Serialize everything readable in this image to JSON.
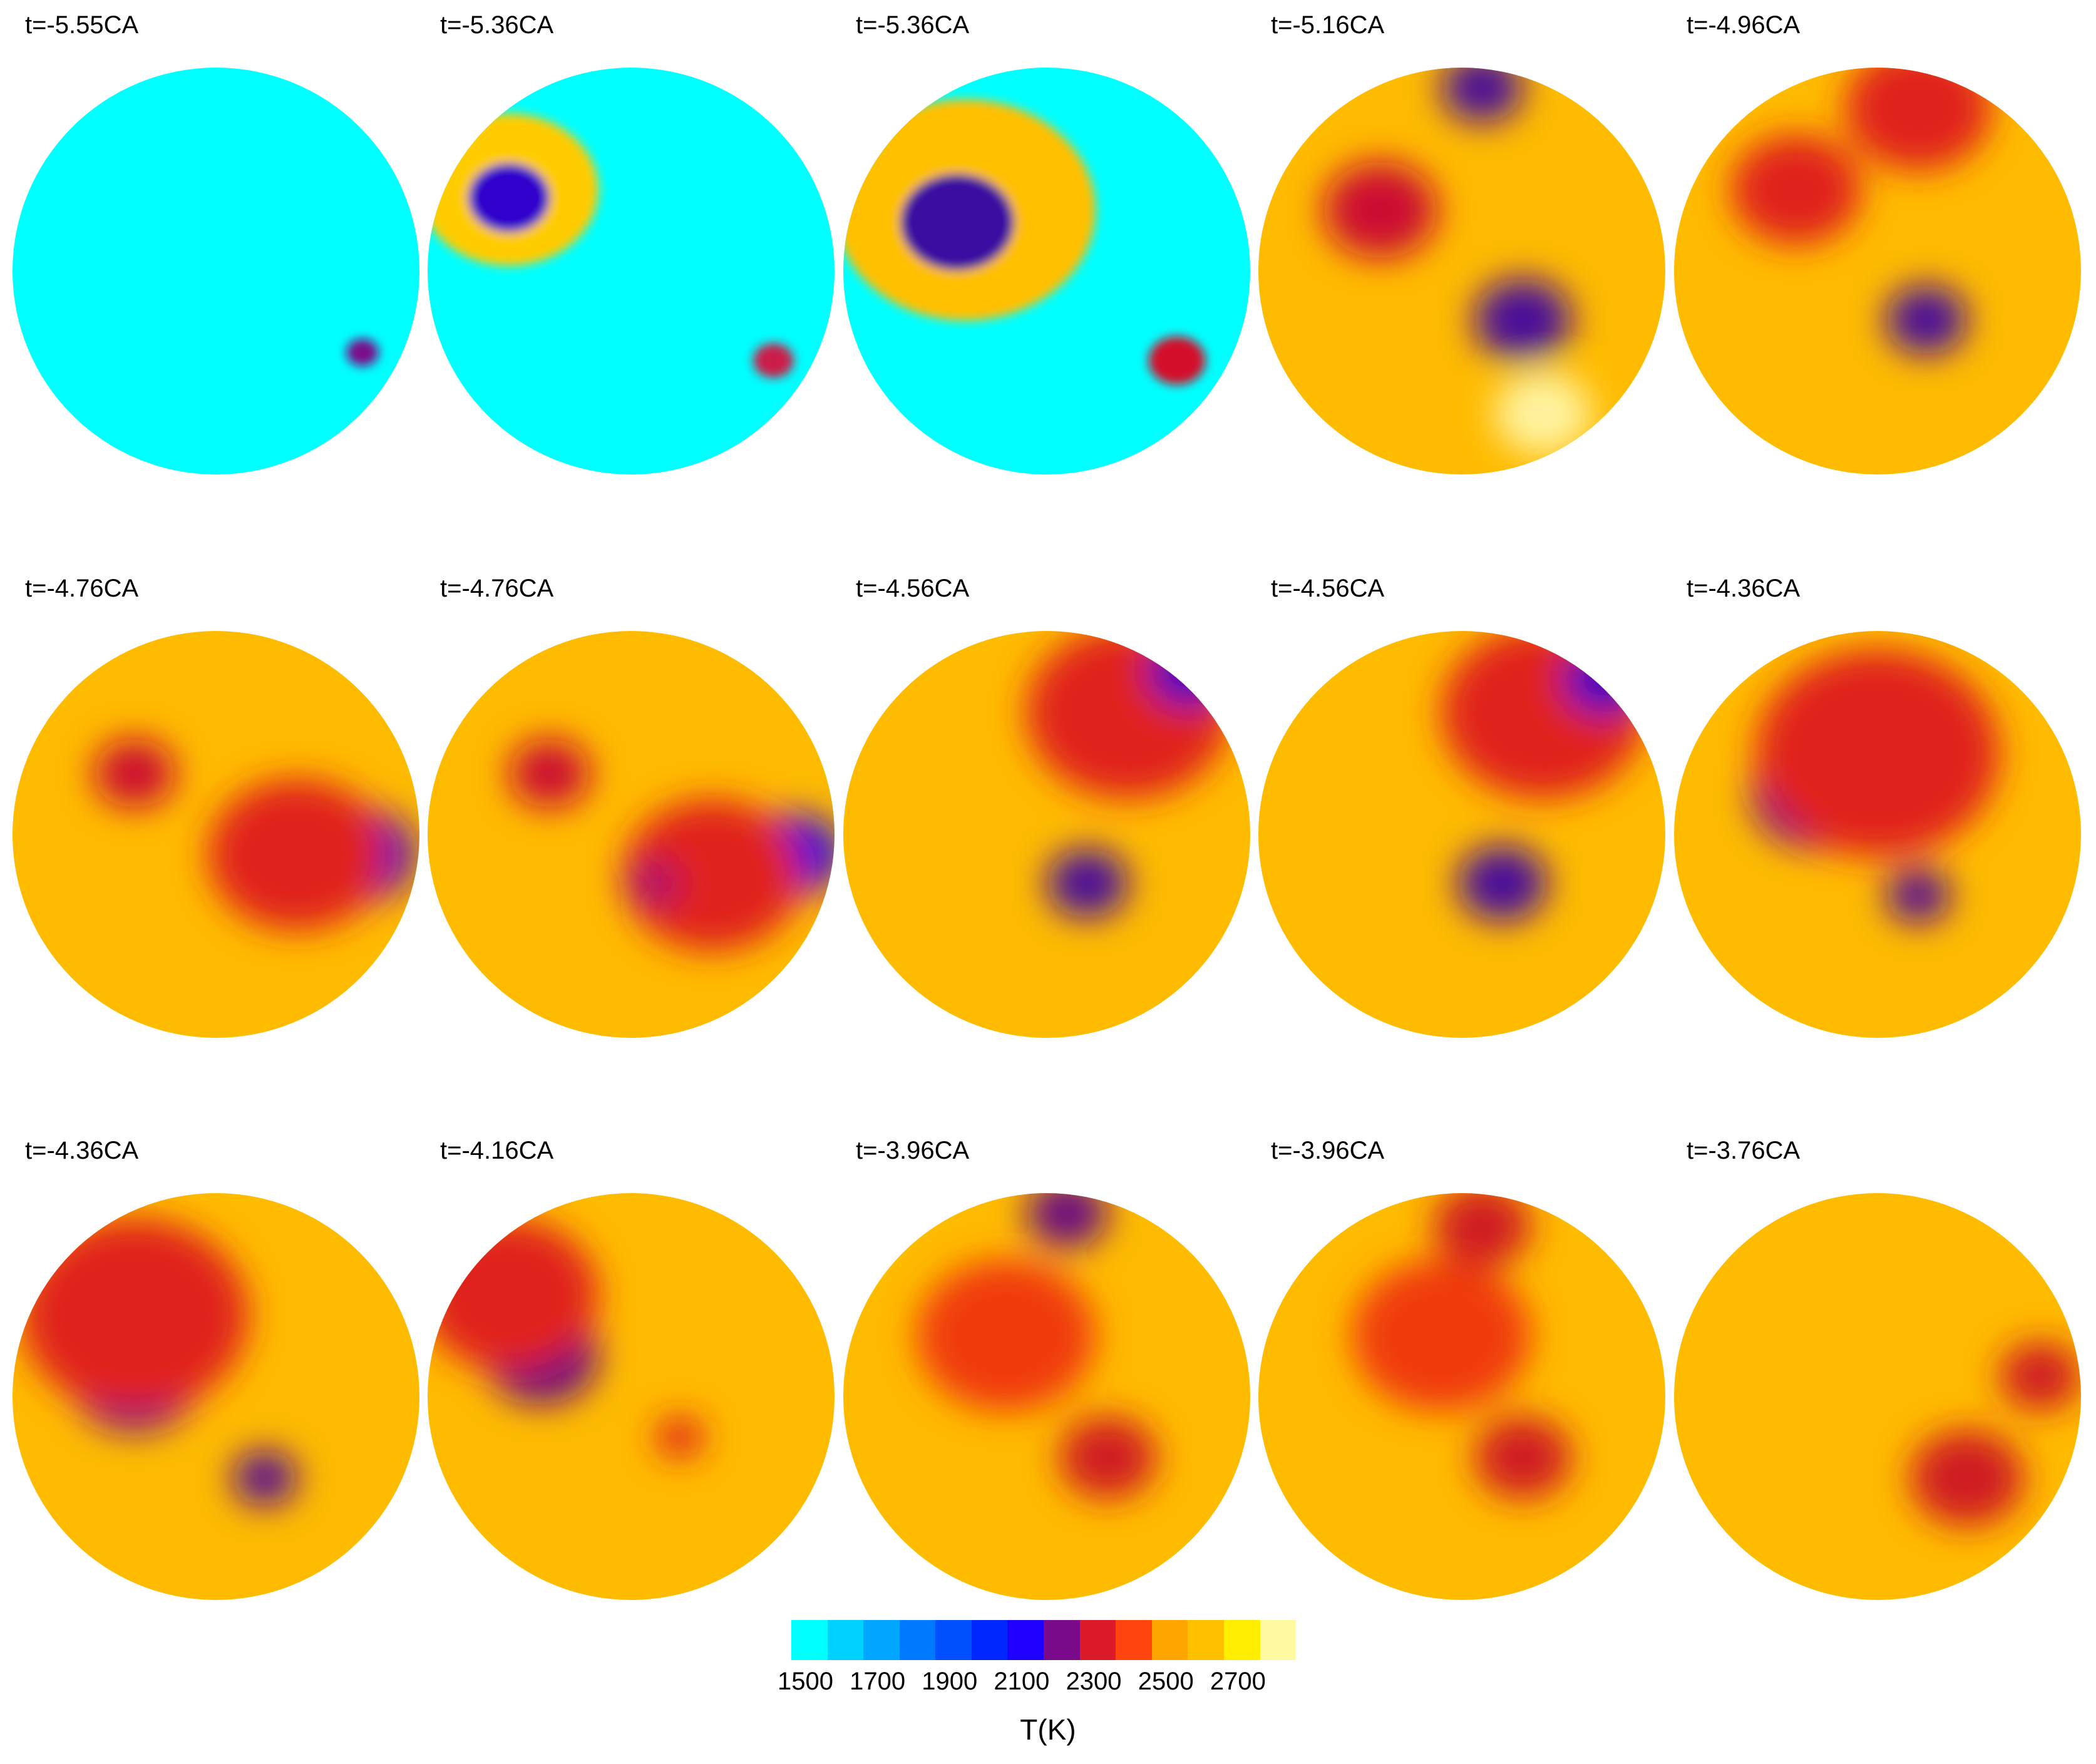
{
  "panels": [
    {
      "label": "t=-5.55CA",
      "state": "unburned",
      "hotspots": [
        [
          0.86,
          0.7,
          0.04,
          "#7a0a8a"
        ]
      ]
    },
    {
      "label": "t=-5.36CA",
      "state": "kernel",
      "hotspots": [
        [
          0.2,
          0.3,
          0.22,
          "#ffcc00"
        ],
        [
          0.2,
          0.32,
          0.1,
          "#3300cc"
        ],
        [
          0.85,
          0.72,
          0.05,
          "#cc1a4a"
        ]
      ]
    },
    {
      "label": "t=-5.36CA",
      "state": "kernel",
      "hotspots": [
        [
          0.3,
          0.35,
          0.32,
          "#ffc000"
        ],
        [
          0.28,
          0.38,
          0.14,
          "#3a0aa0"
        ],
        [
          0.82,
          0.72,
          0.07,
          "#d4102a"
        ]
      ]
    },
    {
      "label": "t=-5.16CA",
      "state": "burned",
      "hotspots": [
        [
          0.3,
          0.35,
          0.14,
          "#cc1030"
        ],
        [
          0.65,
          0.62,
          0.12,
          "#4a0a9a"
        ],
        [
          0.55,
          0.05,
          0.1,
          "#4a0a9a"
        ],
        [
          0.7,
          0.85,
          0.12,
          "#fff3a0"
        ]
      ]
    },
    {
      "label": "t=-4.96CA",
      "state": "burned",
      "hotspots": [
        [
          0.62,
          0.62,
          0.1,
          "#4a0a9a"
        ],
        [
          0.3,
          0.3,
          0.16,
          "#e0201e"
        ],
        [
          0.6,
          0.1,
          0.18,
          "#e0201e"
        ]
      ]
    },
    {
      "label": "t=-4.76CA",
      "state": "burned",
      "hotspots": [
        [
          0.85,
          0.55,
          0.14,
          "#3a10c0"
        ],
        [
          0.3,
          0.35,
          0.1,
          "#cc1030"
        ],
        [
          0.7,
          0.55,
          0.22,
          "#e0201e"
        ]
      ]
    },
    {
      "label": "t=-4.76CA",
      "state": "burned",
      "hotspots": [
        [
          0.9,
          0.55,
          0.12,
          "#2a10dd"
        ],
        [
          0.3,
          0.35,
          0.1,
          "#cc1030"
        ],
        [
          0.7,
          0.6,
          0.22,
          "#e0201e"
        ],
        [
          0.55,
          0.62,
          0.07,
          "#b0106a"
        ]
      ]
    },
    {
      "label": "t=-4.56CA",
      "state": "burned",
      "hotspots": [
        [
          0.6,
          0.62,
          0.1,
          "#4a0a9a"
        ],
        [
          0.7,
          0.2,
          0.25,
          "#e0201e"
        ],
        [
          0.85,
          0.1,
          0.1,
          "#3a10c0"
        ]
      ]
    },
    {
      "label": "t=-4.56CA",
      "state": "burned",
      "hotspots": [
        [
          0.6,
          0.62,
          0.11,
          "#4a0a9a"
        ],
        [
          0.7,
          0.2,
          0.25,
          "#e0201e"
        ],
        [
          0.85,
          0.12,
          0.1,
          "#3a10c0"
        ]
      ]
    },
    {
      "label": "t=-4.36CA",
      "state": "burned",
      "hotspots": [
        [
          0.35,
          0.4,
          0.16,
          "#5a0a90"
        ],
        [
          0.6,
          0.65,
          0.08,
          "#5a0a90"
        ],
        [
          0.5,
          0.3,
          0.3,
          "#e0201e"
        ]
      ]
    },
    {
      "label": "t=-4.36CA",
      "state": "burned",
      "hotspots": [
        [
          0.3,
          0.45,
          0.16,
          "#5a0a90"
        ],
        [
          0.62,
          0.7,
          0.08,
          "#5a0a90"
        ],
        [
          0.3,
          0.3,
          0.28,
          "#e0201e"
        ]
      ]
    },
    {
      "label": "t=-4.16CA",
      "state": "burned",
      "hotspots": [
        [
          0.28,
          0.4,
          0.14,
          "#6a0a80"
        ],
        [
          0.2,
          0.25,
          0.22,
          "#e0201e"
        ],
        [
          0.62,
          0.6,
          0.06,
          "#e0201e"
        ]
      ]
    },
    {
      "label": "t=-3.96CA",
      "state": "burned",
      "hotspots": [
        [
          0.55,
          0.05,
          0.1,
          "#6a0a80"
        ],
        [
          0.4,
          0.35,
          0.22,
          "#f03a10"
        ],
        [
          0.65,
          0.65,
          0.12,
          "#d01a20"
        ]
      ]
    },
    {
      "label": "t=-3.96CA",
      "state": "burned",
      "hotspots": [
        [
          0.45,
          0.35,
          0.22,
          "#f03a10"
        ],
        [
          0.65,
          0.65,
          0.12,
          "#d01a20"
        ],
        [
          0.55,
          0.08,
          0.12,
          "#d01a20"
        ]
      ]
    },
    {
      "label": "t=-3.76CA",
      "state": "burned",
      "hotspots": [
        [
          0.72,
          0.7,
          0.14,
          "#d01a20"
        ],
        [
          0.9,
          0.45,
          0.1,
          "#d01a20"
        ]
      ]
    }
  ],
  "colorbar": {
    "colors": [
      "#00ffff",
      "#00d2ff",
      "#00a6ff",
      "#0078ff",
      "#0050ff",
      "#0028ff",
      "#1e00ff",
      "#7a0a8a",
      "#dd1a2a",
      "#ff4410",
      "#ffa600",
      "#ffc000",
      "#ffee00",
      "#fffaa0"
    ],
    "ticks": [
      "1500",
      "1700",
      "1900",
      "2100",
      "2300",
      "2500",
      "2700"
    ],
    "title": "T(K)"
  }
}
